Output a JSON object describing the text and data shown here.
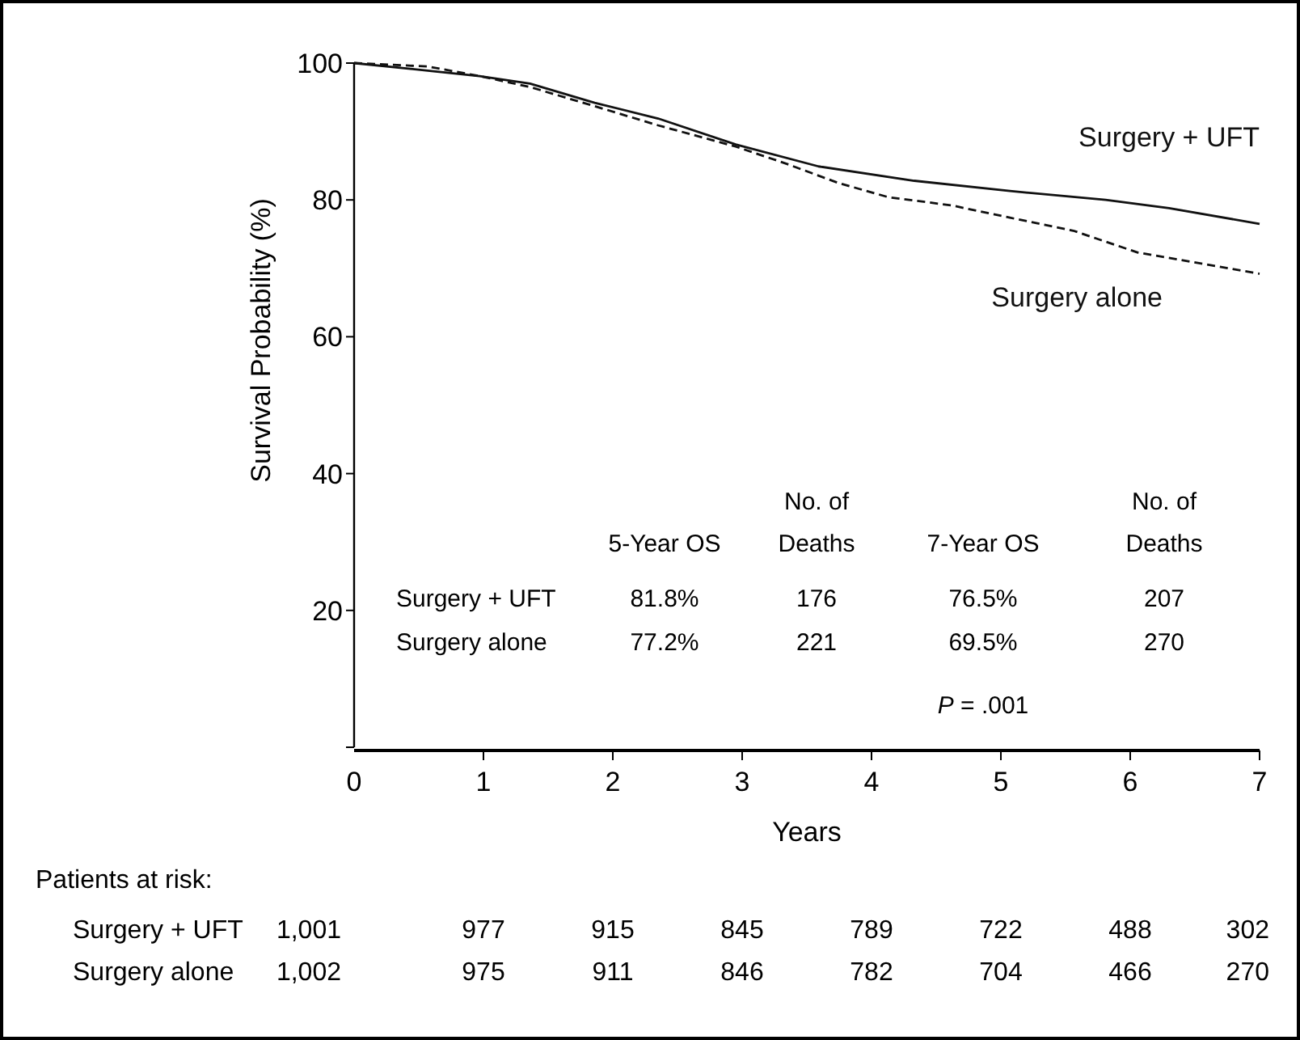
{
  "chart_data": {
    "type": "line",
    "xlabel": "Years",
    "ylabel": "Survival Probability (%)",
    "xlim": [
      0,
      7
    ],
    "ylim": [
      0,
      100
    ],
    "xticks": [
      0,
      1,
      2,
      3,
      4,
      5,
      6,
      7
    ],
    "yticks": [
      {
        "value": 0,
        "label": null
      },
      20,
      40,
      60,
      80,
      100
    ],
    "grid": false,
    "series": [
      {
        "name": "Surgery + UFT",
        "color": "#111111",
        "line_style": "solid",
        "x": [
          0,
          0.57,
          0.97,
          1.36,
          1.86,
          2.35,
          2.95,
          3.59,
          4.33,
          5.07,
          5.81,
          6.3,
          7
        ],
        "values": [
          100,
          98.9,
          98.1,
          97,
          94.2,
          91.9,
          88.1,
          84.9,
          82.8,
          81.3,
          80,
          78.8,
          76.5
        ]
      },
      {
        "name": "Surgery alone",
        "color": "#111111",
        "line_style": "dashed",
        "x": [
          0,
          0.57,
          0.97,
          1.36,
          1.86,
          2.35,
          2.95,
          3.34,
          3.74,
          4.13,
          4.62,
          5.07,
          5.56,
          6.06,
          6.55,
          7
        ],
        "values": [
          100,
          99.5,
          98.1,
          96.5,
          93.7,
          90.9,
          87.8,
          85.3,
          82.5,
          80.4,
          79.2,
          77.4,
          75.5,
          72.3,
          70.7,
          69.2
        ]
      }
    ],
    "annotations": [
      "5-Year OS",
      "No. of Deaths",
      "7-Year OS",
      "No. of Deaths",
      "Surgery + UFT",
      "81.8%",
      "176",
      "76.5%",
      "207",
      "Surgery alone",
      "77.2%",
      "221",
      "69.5%",
      "270",
      "P = .001",
      "Patients at risk:",
      "Surgery + UFT",
      "1,001",
      "977",
      "915",
      "845",
      "789",
      "722",
      "488",
      "302",
      "Surgery alone",
      "1,002",
      "975",
      "911",
      "846",
      "782",
      "704",
      "466",
      "270"
    ]
  }
}
